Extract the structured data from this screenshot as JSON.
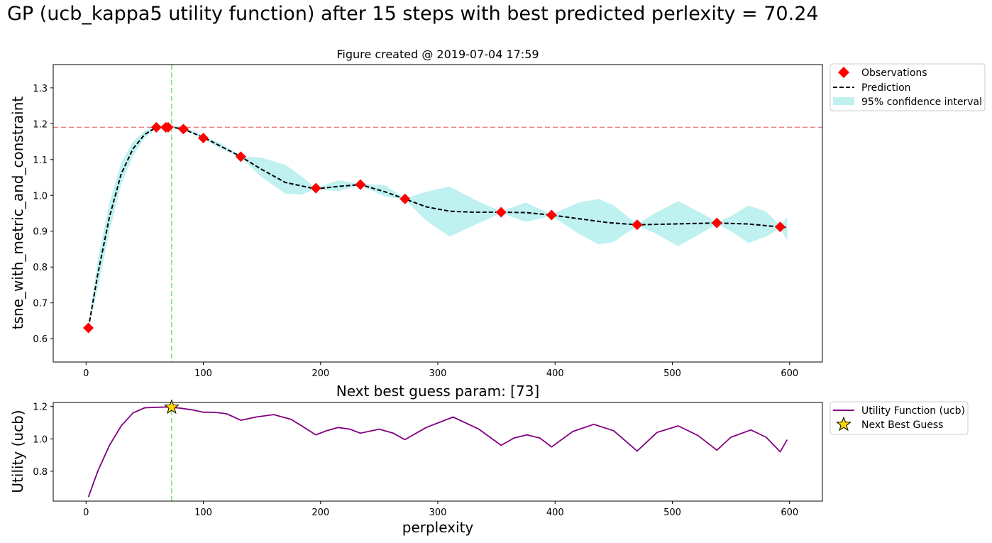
{
  "suptitle": "GP (ucb_kappa5 utility function) after 15 steps with best predicted perlexity = 70.24",
  "colors": {
    "observations": "#ff0000",
    "prediction": "#000000",
    "confidence": "#afeeee",
    "best_hline": "#f08080",
    "best_vline": "#77dd77",
    "utility": "#800080",
    "next_best": "#ffd700"
  },
  "chart_data": [
    {
      "type": "line",
      "title": "Figure created @ 2019-07-04 17:59",
      "xlabel": "",
      "ylabel": "tsne_with_metric_and_constraint",
      "xlim": [
        -28,
        628
      ],
      "ylim": [
        0.535,
        1.365
      ],
      "xticks": [
        0,
        100,
        200,
        300,
        400,
        500,
        600
      ],
      "yticks": [
        0.6,
        0.7,
        0.8,
        0.9,
        1.0,
        1.1,
        1.2,
        1.3
      ],
      "ytick_labels": [
        "0.6",
        "0.7",
        "0.8",
        "0.9",
        "1.0",
        "1.1",
        "1.2",
        "1.3"
      ],
      "hline": 1.19,
      "vline": 73,
      "legend_position": "outside-top-right",
      "series": [
        {
          "name": "Observations",
          "marker": "diamond",
          "x": [
            2,
            60,
            68,
            70,
            83,
            100,
            132,
            196,
            234,
            272,
            354,
            397,
            470,
            538,
            592
          ],
          "y": [
            0.63,
            1.19,
            1.19,
            1.19,
            1.185,
            1.16,
            1.108,
            1.02,
            1.03,
            0.99,
            0.953,
            0.945,
            0.918,
            0.923,
            0.912
          ]
        },
        {
          "name": "Prediction",
          "style": "dashed",
          "x": [
            2,
            10,
            20,
            30,
            40,
            50,
            60,
            70,
            83,
            100,
            115,
            132,
            150,
            170,
            196,
            215,
            234,
            255,
            272,
            290,
            310,
            330,
            354,
            375,
            397,
            420,
            445,
            470,
            500,
            538,
            565,
            598
          ],
          "y": [
            0.63,
            0.78,
            0.94,
            1.06,
            1.13,
            1.17,
            1.19,
            1.192,
            1.185,
            1.162,
            1.137,
            1.108,
            1.072,
            1.036,
            1.018,
            1.025,
            1.03,
            1.01,
            0.99,
            0.968,
            0.956,
            0.953,
            0.953,
            0.952,
            0.945,
            0.935,
            0.924,
            0.918,
            0.92,
            0.923,
            0.92,
            0.91
          ]
        },
        {
          "name": "95% confidence interval",
          "style": "band",
          "x": [
            2,
            10,
            20,
            30,
            40,
            50,
            60,
            65,
            70,
            77,
            83,
            92,
            100,
            115,
            132,
            150,
            170,
            183,
            196,
            215,
            234,
            255,
            272,
            290,
            310,
            330,
            354,
            375,
            397,
            420,
            437,
            450,
            470,
            485,
            505,
            525,
            538,
            550,
            565,
            580,
            592,
            598
          ],
          "lower": [
            0.63,
            0.74,
            0.9,
            1.03,
            1.11,
            1.16,
            1.188,
            1.188,
            1.188,
            1.186,
            1.183,
            1.172,
            1.158,
            1.13,
            1.106,
            1.05,
            1.005,
            1.002,
            1.017,
            1.012,
            1.027,
            0.997,
            0.988,
            0.93,
            0.885,
            0.915,
            0.951,
            0.926,
            0.943,
            0.893,
            0.863,
            0.87,
            0.916,
            0.895,
            0.858,
            0.895,
            0.921,
            0.9,
            0.867,
            0.885,
            0.909,
            0.875
          ],
          "upper": [
            0.63,
            0.82,
            0.98,
            1.09,
            1.15,
            1.18,
            1.192,
            1.195,
            1.196,
            1.195,
            1.188,
            1.18,
            1.166,
            1.145,
            1.11,
            1.105,
            1.085,
            1.055,
            1.021,
            1.042,
            1.033,
            1.028,
            0.992,
            1.01,
            1.025,
            0.99,
            0.955,
            0.98,
            0.947,
            0.98,
            0.99,
            0.972,
            0.92,
            0.95,
            0.984,
            0.95,
            0.925,
            0.942,
            0.972,
            0.955,
            0.915,
            0.94
          ]
        }
      ]
    },
    {
      "type": "line",
      "title": "Next best guess param: [73]",
      "xlabel": "perplexity",
      "ylabel": "Utility (ucb)",
      "xlim": [
        -28,
        628
      ],
      "ylim": [
        0.615,
        1.225
      ],
      "xticks": [
        0,
        100,
        200,
        300,
        400,
        500,
        600
      ],
      "yticks": [
        0.8,
        1.0,
        1.2
      ],
      "ytick_labels": [
        "0.8",
        "1.0",
        "1.2"
      ],
      "vline": 73,
      "legend_position": "outside-top-right",
      "series": [
        {
          "name": "Utility Function (ucb)",
          "x": [
            2,
            10,
            20,
            30,
            40,
            50,
            60,
            70,
            80,
            90,
            100,
            110,
            120,
            132,
            145,
            160,
            175,
            185,
            196,
            205,
            215,
            225,
            234,
            250,
            262,
            272,
            290,
            313,
            335,
            354,
            365,
            376,
            387,
            397,
            415,
            433,
            450,
            470,
            487,
            505,
            522,
            538,
            550,
            567,
            580,
            592,
            598
          ],
          "y": [
            0.64,
            0.8,
            0.96,
            1.08,
            1.16,
            1.192,
            1.195,
            1.197,
            1.19,
            1.18,
            1.165,
            1.164,
            1.155,
            1.115,
            1.135,
            1.15,
            1.12,
            1.075,
            1.025,
            1.05,
            1.07,
            1.06,
            1.035,
            1.06,
            1.035,
            0.995,
            1.07,
            1.135,
            1.06,
            0.96,
            1.005,
            1.025,
            1.005,
            0.95,
            1.045,
            1.09,
            1.05,
            0.925,
            1.04,
            1.08,
            1.02,
            0.93,
            1.01,
            1.055,
            1.01,
            0.92,
            0.995
          ]
        },
        {
          "name": "Next Best Guess",
          "marker": "star",
          "x": [
            73
          ],
          "y": [
            1.195
          ]
        }
      ]
    }
  ]
}
